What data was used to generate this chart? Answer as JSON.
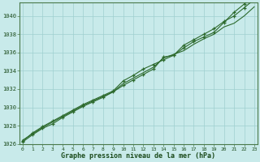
{
  "xlabel": "Graphe pression niveau de la mer (hPa)",
  "hours": [
    0,
    1,
    2,
    3,
    4,
    5,
    6,
    7,
    8,
    9,
    10,
    11,
    12,
    13,
    14,
    15,
    16,
    17,
    18,
    19,
    20,
    21,
    22,
    23
  ],
  "line1": [
    1026.2,
    1027.0,
    1027.7,
    1028.2,
    1028.9,
    1029.5,
    1030.1,
    1030.6,
    1031.1,
    1031.7,
    1032.4,
    1033.0,
    1033.6,
    1034.2,
    1035.5,
    1035.7,
    1036.5,
    1037.2,
    1037.7,
    1038.2,
    1039.3,
    1040.4,
    1041.3,
    1042.3
  ],
  "line2": [
    1026.3,
    1027.2,
    1027.9,
    1028.5,
    1029.1,
    1029.7,
    1030.3,
    1030.8,
    1031.3,
    1031.8,
    1032.9,
    1033.5,
    1034.2,
    1034.7,
    1035.2,
    1035.7,
    1036.8,
    1037.4,
    1038.0,
    1038.6,
    1039.4,
    1040.0,
    1040.9,
    1041.8
  ],
  "line3": [
    1026.4,
    1027.1,
    1027.8,
    1028.4,
    1029.0,
    1029.6,
    1030.2,
    1030.7,
    1031.2,
    1031.7,
    1032.6,
    1033.2,
    1033.8,
    1034.4,
    1035.4,
    1035.8,
    1036.2,
    1036.9,
    1037.5,
    1038.0,
    1038.8,
    1039.2,
    1040.0,
    1041.0
  ],
  "ylim_min": 1026,
  "ylim_max": 1041.5,
  "yticks": [
    1026,
    1028,
    1030,
    1032,
    1034,
    1036,
    1038,
    1040
  ],
  "line_color": "#2d6a2d",
  "marker": "+",
  "bg_color": "#c8eaea",
  "grid_color": "#9fcfcf",
  "label_color": "#1a4a1a",
  "spine_color": "#4a7a4a"
}
